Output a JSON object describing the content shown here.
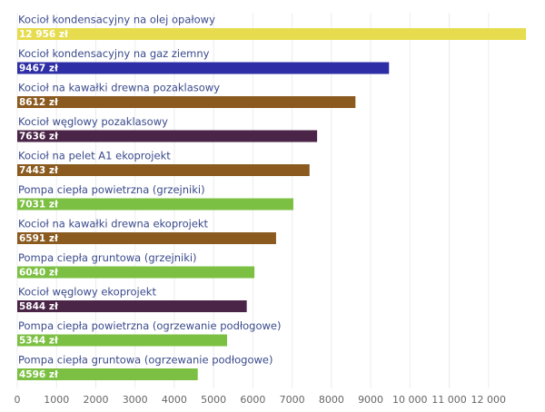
{
  "chart_data": {
    "type": "barh",
    "categories": [
      "Kocioł kondensacyjny na olej opałowy",
      "Kocioł kondensacyjny na gaz ziemny",
      "Kocioł na kawałki drewna pozaklasowy",
      "Kocioł węglowy pozaklasowy",
      "Kocioł na pelet A1 ekoprojekt",
      "Pompa ciepła powietrzna (grzejniki)",
      "Kocioł na kawałki drewna ekoprojekt",
      "Pompa ciepła gruntowa (grzejniki)",
      "Kocioł węglowy ekoprojekt",
      "Pompa ciepła powietrzna (ogrzewanie podłogowe)",
      "Pompa ciepła gruntowa (ogrzewanie podłogowe)"
    ],
    "values": [
      12956,
      9467,
      8612,
      7636,
      7443,
      7031,
      6591,
      6040,
      5844,
      5344,
      4596
    ],
    "value_labels": [
      "12 956 zł",
      "9467 zł",
      "8612 zł",
      "7636 zł",
      "7443 zł",
      "7031 zł",
      "6591 zł",
      "6040 zł",
      "5844 zł",
      "5344 zł",
      "4596 zł"
    ],
    "colors": [
      "#e6dc4e",
      "#2e2ea6",
      "#8a5a1f",
      "#4b2547",
      "#8a5a1f",
      "#7cc043",
      "#8a5a1f",
      "#7cc043",
      "#4b2547",
      "#7cc043",
      "#7cc043"
    ],
    "xlim": [
      0,
      13000
    ],
    "xticks": [
      0,
      1000,
      2000,
      3000,
      4000,
      5000,
      6000,
      7000,
      8000,
      9000,
      {
        "value": 10000,
        "label": "10 000"
      },
      {
        "value": 11000,
        "label": "11 000"
      },
      {
        "value": 12000,
        "label": "12 000"
      }
    ],
    "grid": true
  }
}
